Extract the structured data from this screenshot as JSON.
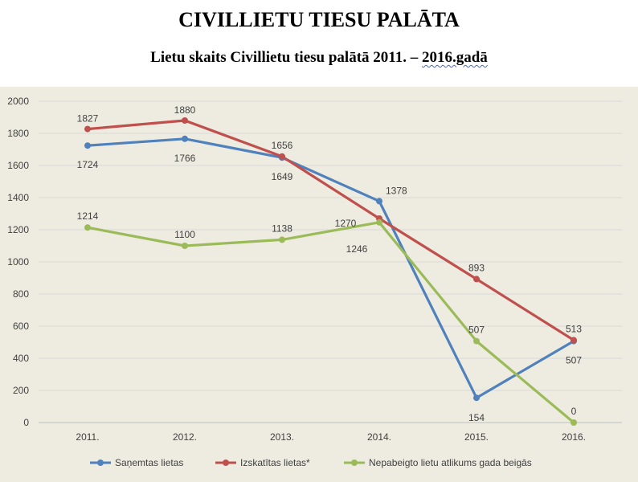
{
  "header": {
    "title": "CIVILLIETU TIESU PALĀTA",
    "subtitle_prefix": "Lietu skaits Civillietu tiesu palātā 2011. – ",
    "subtitle_underlined": "2016.gadā"
  },
  "chart_data": {
    "type": "line",
    "categories": [
      "2011.",
      "2012.",
      "2013.",
      "2014.",
      "2015.",
      "2016."
    ],
    "ylim": [
      0,
      2000
    ],
    "yticks": [
      0,
      200,
      400,
      600,
      800,
      1000,
      1200,
      1400,
      1600,
      1800,
      2000
    ],
    "grid": true,
    "legend_position": "bottom",
    "series": [
      {
        "name": "Saņemtas lietas",
        "color": "#4f81bd",
        "values": [
          1724,
          1766,
          1649,
          1378,
          154,
          507
        ],
        "labels": [
          "1724",
          "1766",
          "1649",
          "1378",
          "154",
          "507"
        ]
      },
      {
        "name": "Izskatītas lietas*",
        "color": "#c0504d",
        "values": [
          1827,
          1880,
          1656,
          1270,
          893,
          513
        ],
        "labels": [
          "1827",
          "1880",
          "1656",
          "1270",
          "893",
          "513"
        ]
      },
      {
        "name": "Nepabeigto lietu atlikums gada beigās",
        "color": "#9bbb59",
        "values": [
          1214,
          1100,
          1138,
          1246,
          507,
          0
        ],
        "labels": [
          "1214",
          "1100",
          "1138",
          "1246",
          "507",
          "0"
        ]
      }
    ]
  }
}
